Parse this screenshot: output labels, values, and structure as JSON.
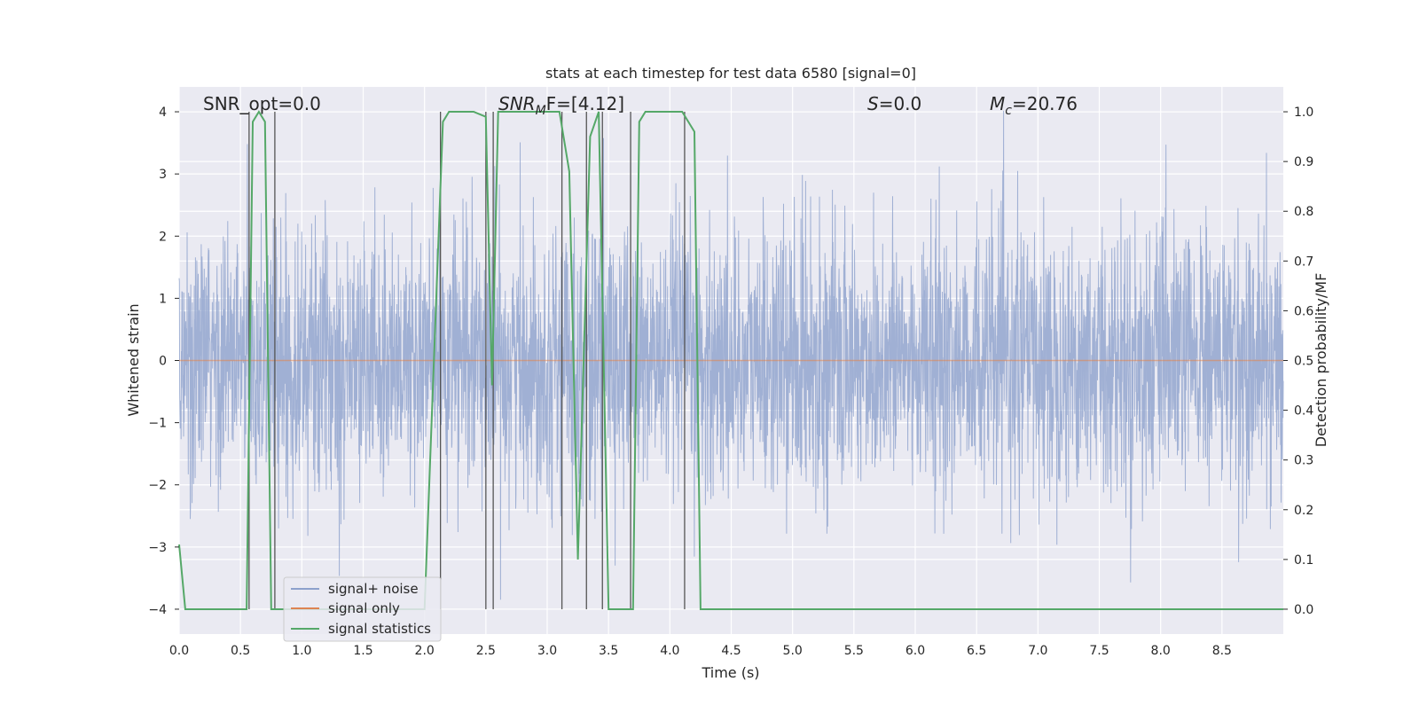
{
  "chart_data": {
    "type": "line",
    "title": "stats at each timestep for test data 6580 [signal=0]",
    "xlabel": "Time (s)",
    "ylabel": "Whitened strain",
    "y2label": "Detection probability/MF",
    "xlim": [
      0.0,
      9.0
    ],
    "ylim": [
      -4.4,
      4.4
    ],
    "y2lim": [
      -0.05,
      1.05
    ],
    "x_ticks": [
      "0.0",
      "0.5",
      "1.0",
      "1.5",
      "2.0",
      "2.5",
      "3.0",
      "3.5",
      "4.0",
      "4.5",
      "5.0",
      "5.5",
      "6.0",
      "6.5",
      "7.0",
      "7.5",
      "8.0",
      "8.5"
    ],
    "y_ticks": [
      "4",
      "3",
      "2",
      "1",
      "0",
      "−1",
      "−2",
      "−3",
      "−4"
    ],
    "y2_ticks": [
      "1.0",
      "0.9",
      "0.8",
      "0.7",
      "0.6",
      "0.5",
      "0.4",
      "0.3",
      "0.2",
      "0.1",
      "0.0"
    ],
    "grid": true,
    "legend_position": "lower-left",
    "annotations": {
      "snr_opt": "SNR_opt=0.0",
      "snr_mf_name": "SNR",
      "snr_mf_sub": "M",
      "snr_mf_tail": "F=[4.12]",
      "s_name": "S",
      "s_value": "=0.0",
      "mc_name": "M",
      "mc_sub": "c",
      "mc_value": "=20.76"
    },
    "series": [
      {
        "name": "signal+ noise",
        "color": "#8da1cc",
        "style": "dense whitened noise, typical range about ±2.5 with spikes to about ±4"
      },
      {
        "name": "signal only",
        "color": "#dd8452",
        "x": [
          0.0,
          9.0
        ],
        "y": [
          0.0,
          0.0
        ]
      },
      {
        "name": "signal statistics",
        "color": "#55a868",
        "axis": "right",
        "x": [
          0.0,
          0.05,
          0.1,
          0.3,
          0.55,
          0.6,
          0.65,
          0.7,
          0.75,
          0.8,
          0.9,
          2.0,
          2.15,
          2.2,
          2.4,
          2.5,
          2.55,
          2.6,
          3.1,
          3.18,
          3.25,
          3.35,
          3.42,
          3.5,
          3.6,
          3.7,
          3.75,
          3.8,
          4.1,
          4.2,
          4.25,
          8.0,
          8.5,
          9.0
        ],
        "y": [
          0.13,
          0.0,
          0.0,
          0.0,
          0.0,
          0.98,
          1.0,
          0.98,
          0.0,
          0.0,
          0.0,
          0.0,
          0.98,
          1.0,
          1.0,
          0.99,
          0.45,
          1.0,
          1.0,
          0.88,
          0.1,
          0.95,
          1.0,
          0.0,
          0.0,
          0.0,
          0.98,
          1.0,
          1.0,
          0.96,
          0.0,
          0.0,
          0.0,
          0.0
        ]
      }
    ],
    "vertical_markers_s": [
      0.57,
      0.78,
      2.13,
      2.5,
      2.56,
      3.12,
      3.32,
      3.45,
      3.68,
      4.12
    ]
  }
}
